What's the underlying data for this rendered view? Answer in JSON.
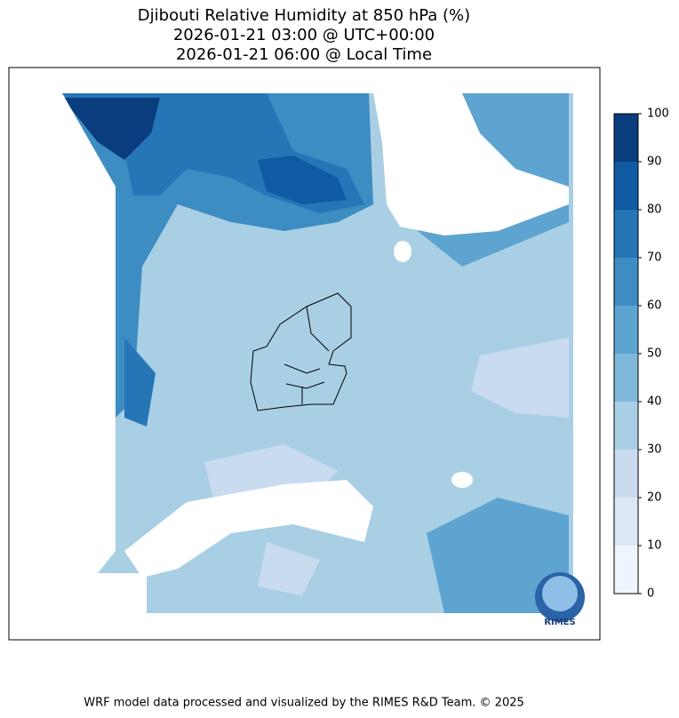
{
  "title": [
    "Djibouti Relative Humidity at 850 hPa (%)",
    "2026-01-21 03:00 @ UTC+00:00",
    "2026-01-21 06:00 @ Local Time"
  ],
  "colorbar": {
    "ticks": [
      0,
      10,
      20,
      30,
      40,
      50,
      60,
      70,
      80,
      90,
      100
    ],
    "colors": [
      "#eff5fc",
      "#dae8f5",
      "#c9dcef",
      "#a9cfe5",
      "#7fb8da",
      "#5da4d0",
      "#3d8dc3",
      "#2575b7",
      "#0f5aa3",
      "#0a3d7e"
    ]
  },
  "logo": "RIMES",
  "footer": "WRF model data processed and visualized by the RIMES R&D Team. © 2025"
}
